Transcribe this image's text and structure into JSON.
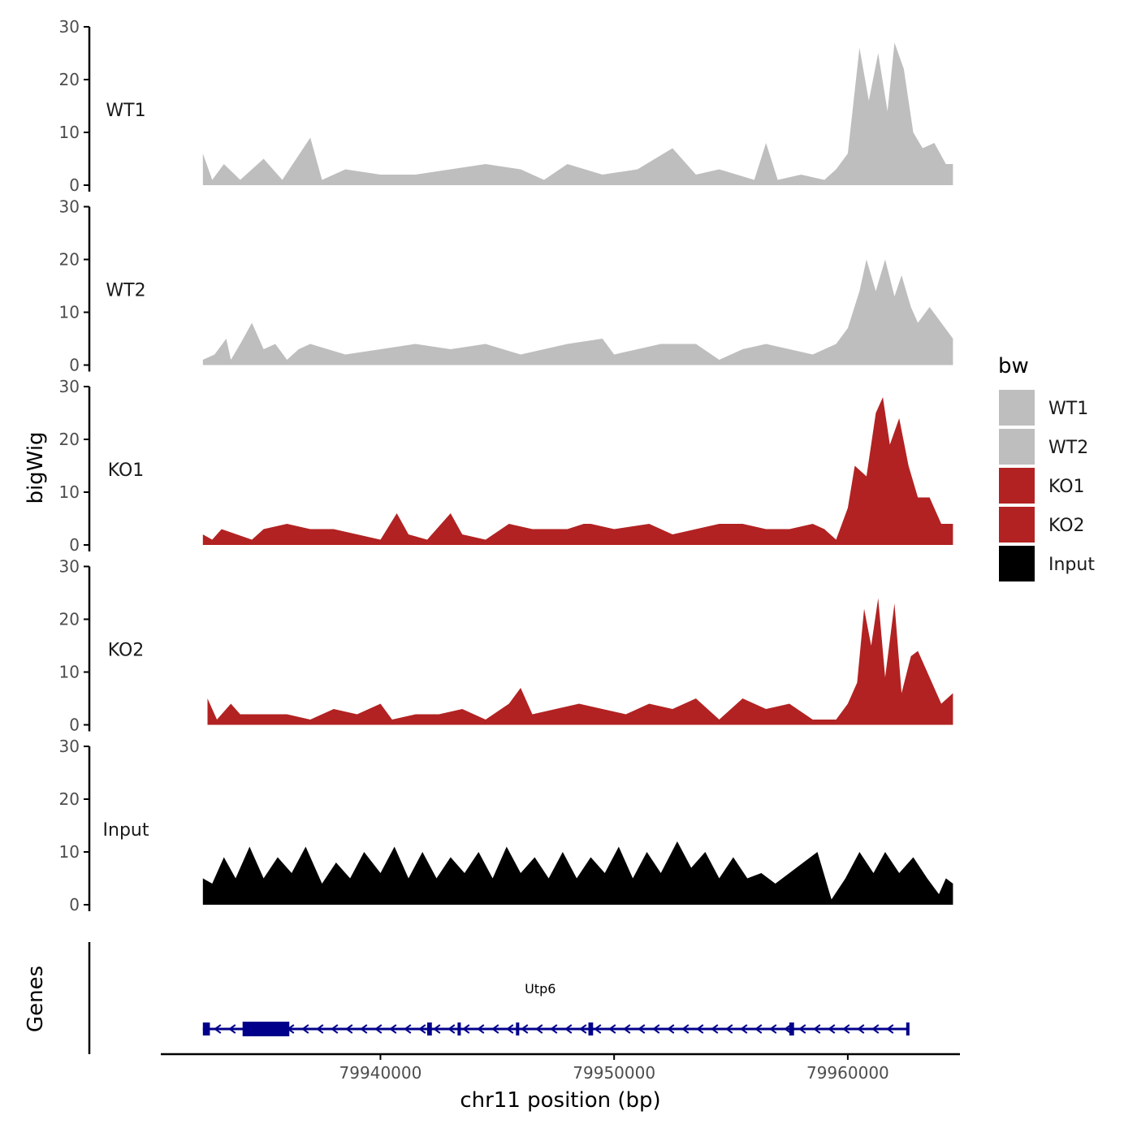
{
  "chart_data": {
    "type": "area",
    "ylabel": "bigWig",
    "genes_label": "Genes",
    "xlabel": "chr11 position (bp)",
    "xlim": [
      79930600,
      79964800
    ],
    "x_region": [
      79932400,
      79964500
    ],
    "x_ticks": [
      {
        "value": 79940000,
        "label": "79940000"
      },
      {
        "value": 79950000,
        "label": "79950000"
      },
      {
        "value": 79960000,
        "label": "79960000"
      }
    ],
    "ylim": [
      0,
      30
    ],
    "y_ticks": [
      {
        "value": 0,
        "label": "0"
      },
      {
        "value": 10,
        "label": "10"
      },
      {
        "value": 20,
        "label": "20"
      },
      {
        "value": 30,
        "label": "30"
      }
    ],
    "legend": {
      "title": "bw",
      "items": [
        {
          "name": "WT1",
          "color": "#bebebe"
        },
        {
          "name": "WT2",
          "color": "#bebebe"
        },
        {
          "name": "KO1",
          "color": "#b22222"
        },
        {
          "name": "KO2",
          "color": "#b22222"
        },
        {
          "name": "Input",
          "color": "#000000"
        }
      ]
    },
    "series": [
      {
        "name": "WT1",
        "color": "#bebebe",
        "points": [
          [
            79932400,
            6
          ],
          [
            79932800,
            1
          ],
          [
            79933300,
            4
          ],
          [
            79934000,
            1
          ],
          [
            79935000,
            5
          ],
          [
            79935800,
            1
          ],
          [
            79937000,
            9
          ],
          [
            79937500,
            1
          ],
          [
            79938500,
            3
          ],
          [
            79940000,
            2
          ],
          [
            79941500,
            2
          ],
          [
            79943000,
            3
          ],
          [
            79944500,
            4
          ],
          [
            79946000,
            3
          ],
          [
            79947000,
            1
          ],
          [
            79948000,
            4
          ],
          [
            79949500,
            2
          ],
          [
            79951000,
            3
          ],
          [
            79952500,
            7
          ],
          [
            79953500,
            2
          ],
          [
            79954500,
            3
          ],
          [
            79956000,
            1
          ],
          [
            79956500,
            8
          ],
          [
            79957000,
            1
          ],
          [
            79958000,
            2
          ],
          [
            79959000,
            1
          ],
          [
            79959500,
            3
          ],
          [
            79960000,
            6
          ],
          [
            79960500,
            26
          ],
          [
            79960900,
            16
          ],
          [
            79961300,
            25
          ],
          [
            79961700,
            14
          ],
          [
            79962000,
            27
          ],
          [
            79962400,
            22
          ],
          [
            79962800,
            10
          ],
          [
            79963200,
            7
          ],
          [
            79963700,
            8
          ],
          [
            79964200,
            4
          ],
          [
            79964500,
            4
          ]
        ]
      },
      {
        "name": "WT2",
        "color": "#bebebe",
        "points": [
          [
            79932400,
            1
          ],
          [
            79932900,
            2
          ],
          [
            79933400,
            5
          ],
          [
            79933600,
            1
          ],
          [
            79934000,
            4
          ],
          [
            79934500,
            8
          ],
          [
            79935000,
            3
          ],
          [
            79935500,
            4
          ],
          [
            79936000,
            1
          ],
          [
            79936500,
            3
          ],
          [
            79937000,
            4
          ],
          [
            79938500,
            2
          ],
          [
            79940000,
            3
          ],
          [
            79941500,
            4
          ],
          [
            79943000,
            3
          ],
          [
            79944500,
            4
          ],
          [
            79946000,
            2
          ],
          [
            79948000,
            4
          ],
          [
            79949500,
            5
          ],
          [
            79950000,
            2
          ],
          [
            79951000,
            3
          ],
          [
            79952000,
            4
          ],
          [
            79953500,
            4
          ],
          [
            79954500,
            1
          ],
          [
            79955500,
            3
          ],
          [
            79956500,
            4
          ],
          [
            79957500,
            3
          ],
          [
            79958500,
            2
          ],
          [
            79959500,
            4
          ],
          [
            79960000,
            7
          ],
          [
            79960500,
            14
          ],
          [
            79960800,
            20
          ],
          [
            79961200,
            14
          ],
          [
            79961600,
            20
          ],
          [
            79962000,
            13
          ],
          [
            79962300,
            17
          ],
          [
            79962700,
            11
          ],
          [
            79963000,
            8
          ],
          [
            79963500,
            11
          ],
          [
            79964000,
            8
          ],
          [
            79964500,
            5
          ]
        ]
      },
      {
        "name": "KO1",
        "color": "#b22222",
        "points": [
          [
            79932400,
            2
          ],
          [
            79932800,
            1
          ],
          [
            79933200,
            3
          ],
          [
            79934500,
            1
          ],
          [
            79935000,
            3
          ],
          [
            79936000,
            4
          ],
          [
            79937000,
            3
          ],
          [
            79938000,
            3
          ],
          [
            79939000,
            2
          ],
          [
            79940000,
            1
          ],
          [
            79940700,
            6
          ],
          [
            79941200,
            2
          ],
          [
            79942000,
            1
          ],
          [
            79943000,
            6
          ],
          [
            79943500,
            2
          ],
          [
            79944500,
            1
          ],
          [
            79945500,
            4
          ],
          [
            79946500,
            3
          ],
          [
            79948000,
            3
          ],
          [
            79948700,
            4
          ],
          [
            79949000,
            4
          ],
          [
            79950000,
            3
          ],
          [
            79951500,
            4
          ],
          [
            79952500,
            2
          ],
          [
            79953500,
            3
          ],
          [
            79954500,
            4
          ],
          [
            79955500,
            4
          ],
          [
            79956500,
            3
          ],
          [
            79957500,
            3
          ],
          [
            79958500,
            4
          ],
          [
            79959000,
            3
          ],
          [
            79959500,
            1
          ],
          [
            79960000,
            7
          ],
          [
            79960300,
            15
          ],
          [
            79960800,
            13
          ],
          [
            79961200,
            25
          ],
          [
            79961500,
            28
          ],
          [
            79961800,
            19
          ],
          [
            79962200,
            24
          ],
          [
            79962600,
            15
          ],
          [
            79963000,
            9
          ],
          [
            79963500,
            9
          ],
          [
            79964000,
            4
          ],
          [
            79964500,
            4
          ]
        ]
      },
      {
        "name": "KO2",
        "color": "#b22222",
        "points": [
          [
            79932600,
            5
          ],
          [
            79933000,
            1
          ],
          [
            79933600,
            4
          ],
          [
            79934000,
            2
          ],
          [
            79935000,
            2
          ],
          [
            79936000,
            2
          ],
          [
            79937000,
            1
          ],
          [
            79938000,
            3
          ],
          [
            79939000,
            2
          ],
          [
            79940000,
            4
          ],
          [
            79940500,
            1
          ],
          [
            79941500,
            2
          ],
          [
            79942500,
            2
          ],
          [
            79943500,
            3
          ],
          [
            79944500,
            1
          ],
          [
            79945500,
            4
          ],
          [
            79946000,
            7
          ],
          [
            79946500,
            2
          ],
          [
            79947500,
            3
          ],
          [
            79948500,
            4
          ],
          [
            79949500,
            3
          ],
          [
            79950500,
            2
          ],
          [
            79951500,
            4
          ],
          [
            79952500,
            3
          ],
          [
            79953500,
            5
          ],
          [
            79954500,
            1
          ],
          [
            79955500,
            5
          ],
          [
            79956500,
            3
          ],
          [
            79957500,
            4
          ],
          [
            79958500,
            1
          ],
          [
            79959500,
            1
          ],
          [
            79960000,
            4
          ],
          [
            79960400,
            8
          ],
          [
            79960700,
            22
          ],
          [
            79961000,
            15
          ],
          [
            79961300,
            24
          ],
          [
            79961600,
            9
          ],
          [
            79962000,
            23
          ],
          [
            79962300,
            6
          ],
          [
            79962700,
            13
          ],
          [
            79963000,
            14
          ],
          [
            79963500,
            9
          ],
          [
            79964000,
            4
          ],
          [
            79964500,
            6
          ]
        ]
      },
      {
        "name": "Input",
        "color": "#000000",
        "points": [
          [
            79932400,
            5
          ],
          [
            79932800,
            4
          ],
          [
            79933300,
            9
          ],
          [
            79933800,
            5
          ],
          [
            79934400,
            11
          ],
          [
            79935000,
            5
          ],
          [
            79935600,
            9
          ],
          [
            79936200,
            6
          ],
          [
            79936800,
            11
          ],
          [
            79937500,
            4
          ],
          [
            79938100,
            8
          ],
          [
            79938700,
            5
          ],
          [
            79939300,
            10
          ],
          [
            79940000,
            6
          ],
          [
            79940600,
            11
          ],
          [
            79941200,
            5
          ],
          [
            79941800,
            10
          ],
          [
            79942400,
            5
          ],
          [
            79943000,
            9
          ],
          [
            79943600,
            6
          ],
          [
            79944200,
            10
          ],
          [
            79944800,
            5
          ],
          [
            79945400,
            11
          ],
          [
            79946000,
            6
          ],
          [
            79946600,
            9
          ],
          [
            79947200,
            5
          ],
          [
            79947800,
            10
          ],
          [
            79948400,
            5
          ],
          [
            79949000,
            9
          ],
          [
            79949600,
            6
          ],
          [
            79950200,
            11
          ],
          [
            79950800,
            5
          ],
          [
            79951400,
            10
          ],
          [
            79952000,
            6
          ],
          [
            79952700,
            12
          ],
          [
            79953300,
            7
          ],
          [
            79953900,
            10
          ],
          [
            79954500,
            5
          ],
          [
            79955100,
            9
          ],
          [
            79955700,
            5
          ],
          [
            79956300,
            6
          ],
          [
            79956900,
            4
          ],
          [
            79957500,
            6
          ],
          [
            79958100,
            8
          ],
          [
            79958700,
            10
          ],
          [
            79959300,
            1
          ],
          [
            79959900,
            5
          ],
          [
            79960500,
            10
          ],
          [
            79961100,
            6
          ],
          [
            79961600,
            10
          ],
          [
            79962200,
            6
          ],
          [
            79962800,
            9
          ],
          [
            79963400,
            5
          ],
          [
            79963900,
            2
          ],
          [
            79964200,
            5
          ],
          [
            79964500,
            4
          ]
        ]
      }
    ],
    "gene": {
      "name": "Utp6",
      "strand": "-",
      "start": 79932400,
      "end": 79962600,
      "color": "#00008b",
      "exons": [
        [
          79932400,
          79932700
        ],
        [
          79934100,
          79936100
        ],
        [
          79942000,
          79942200
        ],
        [
          79943300,
          79943400
        ],
        [
          79945800,
          79945900
        ],
        [
          79948900,
          79949100
        ],
        [
          79957500,
          79957700
        ],
        [
          79962500,
          79962600
        ]
      ]
    }
  }
}
